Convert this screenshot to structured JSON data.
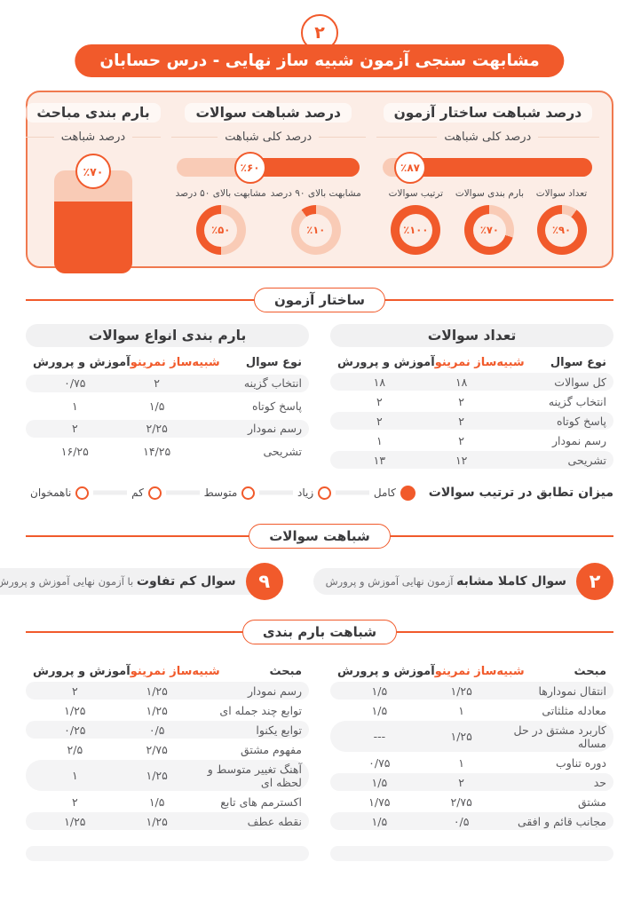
{
  "page_number_badge": "۲",
  "title": "مشابهت سنجی آزمون شبیه ساز نهایی - درس حسابان",
  "colors": {
    "primary": "#F15A2B",
    "peach": "#F9CBB6",
    "panel_bg": "#FCEDE6",
    "pill_gray": "#F1F1F2",
    "dark_text": "#3A3A3C"
  },
  "overview": {
    "sections": [
      {
        "title": "درصد شباهت ساختار آزمون",
        "subtitle": "درصد کلی شباهت",
        "bar_percent": 87,
        "bar_label": "٪۸۷",
        "donuts": [
          {
            "label": "تعداد سوالات",
            "percent": 90,
            "value_label": "٪۹۰"
          },
          {
            "label": "بارم بندی سوالات",
            "percent": 70,
            "value_label": "٪۷۰"
          },
          {
            "label": "ترتیب سوالات",
            "percent": 100,
            "value_label": "٪۱۰۰"
          }
        ]
      },
      {
        "title": "درصد شباهت سوالات",
        "subtitle": "درصد کلی شباهت",
        "bar_percent": 60,
        "bar_label": "٪۶۰",
        "donuts": [
          {
            "label": "مشابهت بالای ۹۰ درصد",
            "percent": 10,
            "value_label": "٪۱۰"
          },
          {
            "label": "مشابهت بالای ۵۰ درصد",
            "percent": 50,
            "value_label": "٪۵۰"
          }
        ]
      },
      {
        "title": "بارم بندی مباحث",
        "subtitle": "درصد شباهت",
        "jar": {
          "percent": 70,
          "value_label": "٪۷۰"
        }
      }
    ]
  },
  "structure_section": {
    "divider_label": "ساختار آزمون",
    "tables": [
      {
        "title": "تعداد سوالات",
        "columns": [
          "نوع سوال",
          "شبیه‌ساز نمرینو",
          "آموزش و پرورش"
        ],
        "rows": [
          {
            "label": "کل سوالات",
            "sim": "۱۸",
            "edu": "۱۸"
          },
          {
            "label": "انتخاب گزینه",
            "sim": "۲",
            "edu": "۲"
          },
          {
            "label": "پاسخ کوتاه",
            "sim": "۲",
            "edu": "۲"
          },
          {
            "label": "رسم نمودار",
            "sim": "۲",
            "edu": "۱"
          },
          {
            "label": "تشریحی",
            "sim": "۱۲",
            "edu": "۱۳"
          }
        ]
      },
      {
        "title": "بارم بندی انواع سوالات",
        "columns": [
          "نوع سوال",
          "شبیه‌ساز نمرینو",
          "آموزش و پرورش"
        ],
        "rows": [
          {
            "label": "انتخاب گزینه",
            "sim": "۲",
            "edu": "۰/۷۵"
          },
          {
            "label": "پاسخ کوتاه",
            "sim": "۱/۵",
            "edu": "۱"
          },
          {
            "label": "رسم نمودار",
            "sim": "۲/۲۵",
            "edu": "۲"
          },
          {
            "label": "تشریحی",
            "sim": "۱۴/۲۵",
            "edu": "۱۶/۲۵"
          }
        ]
      }
    ],
    "order_match": {
      "label": "میزان تطابق در ترتیب سوالات",
      "options": [
        {
          "label": "کامل",
          "selected": true
        },
        {
          "label": "زیاد",
          "selected": false
        },
        {
          "label": "متوسط",
          "selected": false
        },
        {
          "label": "کم",
          "selected": false
        },
        {
          "label": "ناهمخوان",
          "selected": false
        }
      ]
    }
  },
  "question_similarity_section": {
    "divider_label": "شباهت سوالات",
    "badges": [
      {
        "count": "۲",
        "bold": "سوال کاملا مشابه",
        "rest": "آزمون نهایی آموزش و پرورش"
      },
      {
        "count": "۹",
        "bold": "سوال کم تفاوت",
        "rest": "با آزمون نهایی آموزش و پرورش"
      }
    ]
  },
  "scoring_similarity_section": {
    "divider_label": "شباهت بارم بندی",
    "columns": [
      "مبحث",
      "شبیه‌ساز نمرینو",
      "آموزش و پرورش"
    ],
    "tables": [
      {
        "rows": [
          {
            "label": "انتقال نمودارها",
            "sim": "۱/۲۵",
            "edu": "۱/۵"
          },
          {
            "label": "معادله مثلثاتی",
            "sim": "۱",
            "edu": "۱/۵"
          },
          {
            "label": "کاربرد مشتق در حل مساله",
            "sim": "۱/۲۵",
            "edu": "---"
          },
          {
            "label": "دوره تناوب",
            "sim": "۱",
            "edu": "۰/۷۵"
          },
          {
            "label": "حد",
            "sim": "۲",
            "edu": "۱/۵"
          },
          {
            "label": "مشتق",
            "sim": "۲/۷۵",
            "edu": "۱/۷۵"
          },
          {
            "label": "مجانب قائم و افقی",
            "sim": "۰/۵",
            "edu": "۱/۵"
          }
        ]
      },
      {
        "rows": [
          {
            "label": "رسم نمودار",
            "sim": "۱/۲۵",
            "edu": "۲"
          },
          {
            "label": "توابع چند جمله ای",
            "sim": "۱/۲۵",
            "edu": "۱/۲۵"
          },
          {
            "label": "توابع یکنوا",
            "sim": "۰/۵",
            "edu": "۰/۲۵"
          },
          {
            "label": "مفهوم مشتق",
            "sim": "۲/۷۵",
            "edu": "۲/۵"
          },
          {
            "label": "آهنگ تغییر متوسط و لحظه ای",
            "sim": "۱/۲۵",
            "edu": "۱"
          },
          {
            "label": "اکسترمم های تابع",
            "sim": "۱/۵",
            "edu": "۲"
          },
          {
            "label": "نقطه عطف",
            "sim": "۱/۲۵",
            "edu": "۱/۲۵"
          }
        ]
      }
    ]
  },
  "chart_data": [
    {
      "type": "bar",
      "title": "درصد شباهت ساختار آزمون",
      "categories": [
        "درصد کلی شباهت"
      ],
      "values": [
        87
      ],
      "ylim": [
        0,
        100
      ]
    },
    {
      "type": "pie",
      "title": "تعداد سوالات",
      "labels": [
        "شباهت",
        "تفاوت"
      ],
      "values": [
        90,
        10
      ]
    },
    {
      "type": "pie",
      "title": "بارم بندی سوالات",
      "labels": [
        "شباهت",
        "تفاوت"
      ],
      "values": [
        70,
        30
      ]
    },
    {
      "type": "pie",
      "title": "ترتیب سوالات",
      "labels": [
        "شباهت",
        "تفاوت"
      ],
      "values": [
        100,
        0
      ]
    },
    {
      "type": "bar",
      "title": "درصد شباهت سوالات",
      "categories": [
        "درصد کلی شباهت"
      ],
      "values": [
        60
      ],
      "ylim": [
        0,
        100
      ]
    },
    {
      "type": "pie",
      "title": "مشابهت بالای ۹۰ درصد",
      "labels": [
        "سهم",
        "باقی"
      ],
      "values": [
        10,
        90
      ]
    },
    {
      "type": "pie",
      "title": "مشابهت بالای ۵۰ درصد",
      "labels": [
        "سهم",
        "باقی"
      ],
      "values": [
        50,
        50
      ]
    },
    {
      "type": "bar",
      "title": "بارم بندی مباحث - درصد شباهت",
      "categories": [
        "درصد شباهت"
      ],
      "values": [
        70
      ],
      "ylim": [
        0,
        100
      ]
    },
    {
      "type": "table",
      "title": "تعداد سوالات",
      "columns": [
        "نوع سوال",
        "شبیه‌ساز نمرینو",
        "آموزش و پرورش"
      ],
      "rows": [
        [
          "کل سوالات",
          18,
          18
        ],
        [
          "انتخاب گزینه",
          2,
          2
        ],
        [
          "پاسخ کوتاه",
          2,
          2
        ],
        [
          "رسم نمودار",
          2,
          1
        ],
        [
          "تشریحی",
          12,
          13
        ]
      ]
    },
    {
      "type": "table",
      "title": "بارم بندی انواع سوالات",
      "columns": [
        "نوع سوال",
        "شبیه‌ساز نمرینو",
        "آموزش و پرورش"
      ],
      "rows": [
        [
          "انتخاب گزینه",
          2,
          0.75
        ],
        [
          "پاسخ کوتاه",
          1.5,
          1
        ],
        [
          "رسم نمودار",
          2.25,
          2
        ],
        [
          "تشریحی",
          14.25,
          16.25
        ]
      ]
    },
    {
      "type": "table",
      "title": "شباهت بارم بندی (ستون راست)",
      "columns": [
        "مبحث",
        "شبیه‌ساز نمرینو",
        "آموزش و پرورش"
      ],
      "rows": [
        [
          "انتقال نمودارها",
          1.25,
          1.5
        ],
        [
          "معادله مثلثاتی",
          1,
          1.5
        ],
        [
          "کاربرد مشتق در حل مساله",
          1.25,
          null
        ],
        [
          "دوره تناوب",
          1,
          0.75
        ],
        [
          "حد",
          2,
          1.5
        ],
        [
          "مشتق",
          2.75,
          1.75
        ],
        [
          "مجانب قائم و افقی",
          0.5,
          1.5
        ]
      ]
    },
    {
      "type": "table",
      "title": "شباهت بارم بندی (ستون چپ)",
      "columns": [
        "مبحث",
        "شبیه‌ساز نمرینو",
        "آموزش و پرورش"
      ],
      "rows": [
        [
          "رسم نمودار",
          1.25,
          2
        ],
        [
          "توابع چند جمله ای",
          1.25,
          1.25
        ],
        [
          "توابع یکنوا",
          0.5,
          0.25
        ],
        [
          "مفهوم مشتق",
          2.75,
          2.5
        ],
        [
          "آهنگ تغییر متوسط و لحظه ای",
          1.25,
          1
        ],
        [
          "اکسترمم های تابع",
          1.5,
          2
        ],
        [
          "نقطه عطف",
          1.25,
          1.25
        ]
      ]
    }
  ]
}
